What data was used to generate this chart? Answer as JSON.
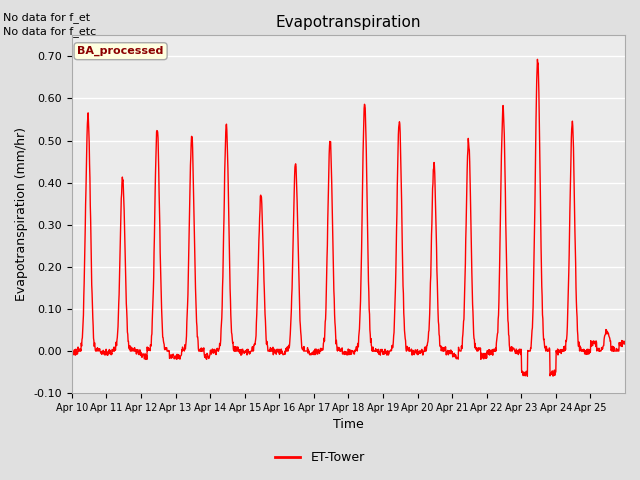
{
  "title": "Evapotranspiration",
  "xlabel": "Time",
  "ylabel": "Evapotranspiration (mm/hr)",
  "ylim": [
    -0.1,
    0.75
  ],
  "yticks": [
    -0.1,
    0.0,
    0.1,
    0.2,
    0.3,
    0.4,
    0.5,
    0.6,
    0.7
  ],
  "line_color": "red",
  "line_width": 1.0,
  "bg_color": "#e0e0e0",
  "plot_bg_color": "#ebebeb",
  "legend_label": "ET-Tower",
  "legend_line_color": "red",
  "text_no_data1": "No data for f_et",
  "text_no_data2": "No data for f_etc",
  "box_label": "BA_processed",
  "xtick_labels": [
    "Apr 10",
    "Apr 11",
    "Apr 12",
    "Apr 13",
    "Apr 14",
    "Apr 15",
    "Apr 16",
    "Apr 17",
    "Apr 18",
    "Apr 19",
    "Apr 20",
    "Apr 21",
    "Apr 22",
    "Apr 23",
    "Apr 24",
    "Apr 25"
  ],
  "daily_peaks": [
    0.56,
    0.41,
    0.53,
    0.51,
    0.53,
    0.37,
    0.45,
    0.5,
    0.59,
    0.55,
    0.44,
    0.5,
    0.58,
    0.69,
    0.54,
    0.05
  ],
  "daily_mins": [
    -0.01,
    -0.01,
    -0.02,
    -0.02,
    -0.01,
    -0.01,
    -0.01,
    -0.01,
    -0.01,
    -0.01,
    -0.01,
    -0.02,
    -0.01,
    -0.06,
    -0.01,
    0.01
  ]
}
